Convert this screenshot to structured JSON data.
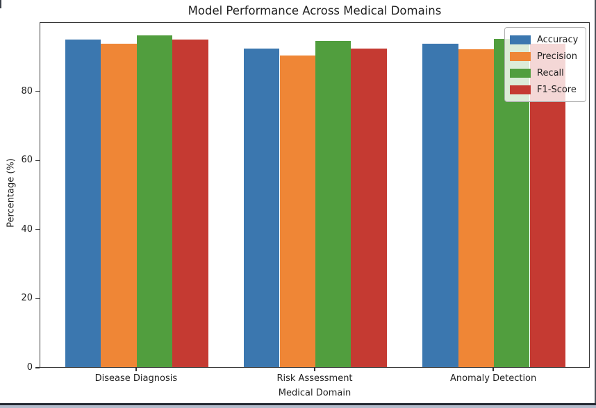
{
  "chart_data": {
    "type": "bar",
    "title": "Model Performance Across Medical Domains",
    "xlabel": "Medical Domain",
    "ylabel": "Percentage (%)",
    "categories": [
      "Disease Diagnosis",
      "Risk Assessment",
      "Anomaly Detection"
    ],
    "series": [
      {
        "name": "Accuracy",
        "color": "#3b77af",
        "values": [
          94.8,
          92.1,
          93.6
        ]
      },
      {
        "name": "Precision",
        "color": "#ef8636",
        "values": [
          93.5,
          90.2,
          92.0
        ]
      },
      {
        "name": "Recall",
        "color": "#519e3e",
        "values": [
          95.9,
          94.3,
          95.0
        ]
      },
      {
        "name": "F1-Score",
        "color": "#c53a32",
        "values": [
          94.7,
          92.2,
          93.5
        ]
      }
    ],
    "yticks": [
      0,
      20,
      40,
      60,
      80
    ],
    "ylim": [
      0,
      100
    ],
    "grid": false,
    "legend_position": "upper right",
    "bar_width_fraction": 0.2,
    "axis_color": "#333333",
    "background_color": "#ffffff"
  },
  "window": {
    "border_right_color": "#4a4f58",
    "border_bottom_color": "#252a33",
    "border_bottom_strip_color": "#b3bccc"
  }
}
